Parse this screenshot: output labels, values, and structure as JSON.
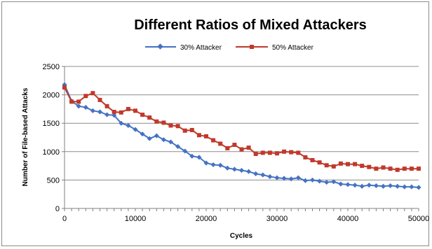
{
  "chart_data": {
    "type": "line",
    "title": "Different Ratios of Mixed Attackers",
    "xlabel": "Cycles",
    "ylabel": "Number of File-based Attacks",
    "xlim": [
      0,
      50000
    ],
    "ylim": [
      0,
      2500
    ],
    "x_ticks": [
      "0",
      "10000",
      "20000",
      "30000",
      "40000",
      "50000"
    ],
    "y_ticks": [
      "0",
      "500",
      "1000",
      "1500",
      "2000",
      "2500"
    ],
    "grid": "horizontal",
    "legend_position": "top",
    "x": [
      0,
      1000,
      2000,
      3000,
      4000,
      5000,
      6000,
      7000,
      8000,
      9000,
      10000,
      11000,
      12000,
      13000,
      14000,
      15000,
      16000,
      17000,
      18000,
      19000,
      20000,
      21000,
      22000,
      23000,
      24000,
      25000,
      26000,
      27000,
      28000,
      29000,
      30000,
      31000,
      32000,
      33000,
      34000,
      35000,
      36000,
      37000,
      38000,
      39000,
      40000,
      41000,
      42000,
      43000,
      44000,
      45000,
      46000,
      47000,
      48000,
      49000,
      50000
    ],
    "series": [
      {
        "name": "30% Attacker",
        "color": "#4472c4",
        "marker": "diamond",
        "values": [
          2180,
          1890,
          1800,
          1780,
          1720,
          1700,
          1650,
          1640,
          1500,
          1460,
          1390,
          1310,
          1230,
          1280,
          1210,
          1170,
          1090,
          1010,
          920,
          900,
          800,
          770,
          760,
          710,
          690,
          670,
          650,
          610,
          590,
          560,
          540,
          530,
          520,
          540,
          490,
          500,
          480,
          460,
          470,
          430,
          420,
          410,
          390,
          410,
          400,
          390,
          400,
          390,
          380,
          380,
          370
        ]
      },
      {
        "name": "50% Attacker",
        "color": "#c0392b",
        "marker": "square",
        "values": [
          2130,
          1880,
          1880,
          1980,
          2030,
          1910,
          1800,
          1700,
          1690,
          1750,
          1720,
          1650,
          1600,
          1530,
          1510,
          1460,
          1450,
          1370,
          1380,
          1290,
          1270,
          1200,
          1140,
          1060,
          1120,
          1040,
          1070,
          960,
          980,
          980,
          970,
          1000,
          990,
          980,
          900,
          850,
          810,
          760,
          740,
          790,
          780,
          780,
          750,
          730,
          700,
          720,
          700,
          680,
          700,
          700,
          700
        ]
      }
    ]
  }
}
